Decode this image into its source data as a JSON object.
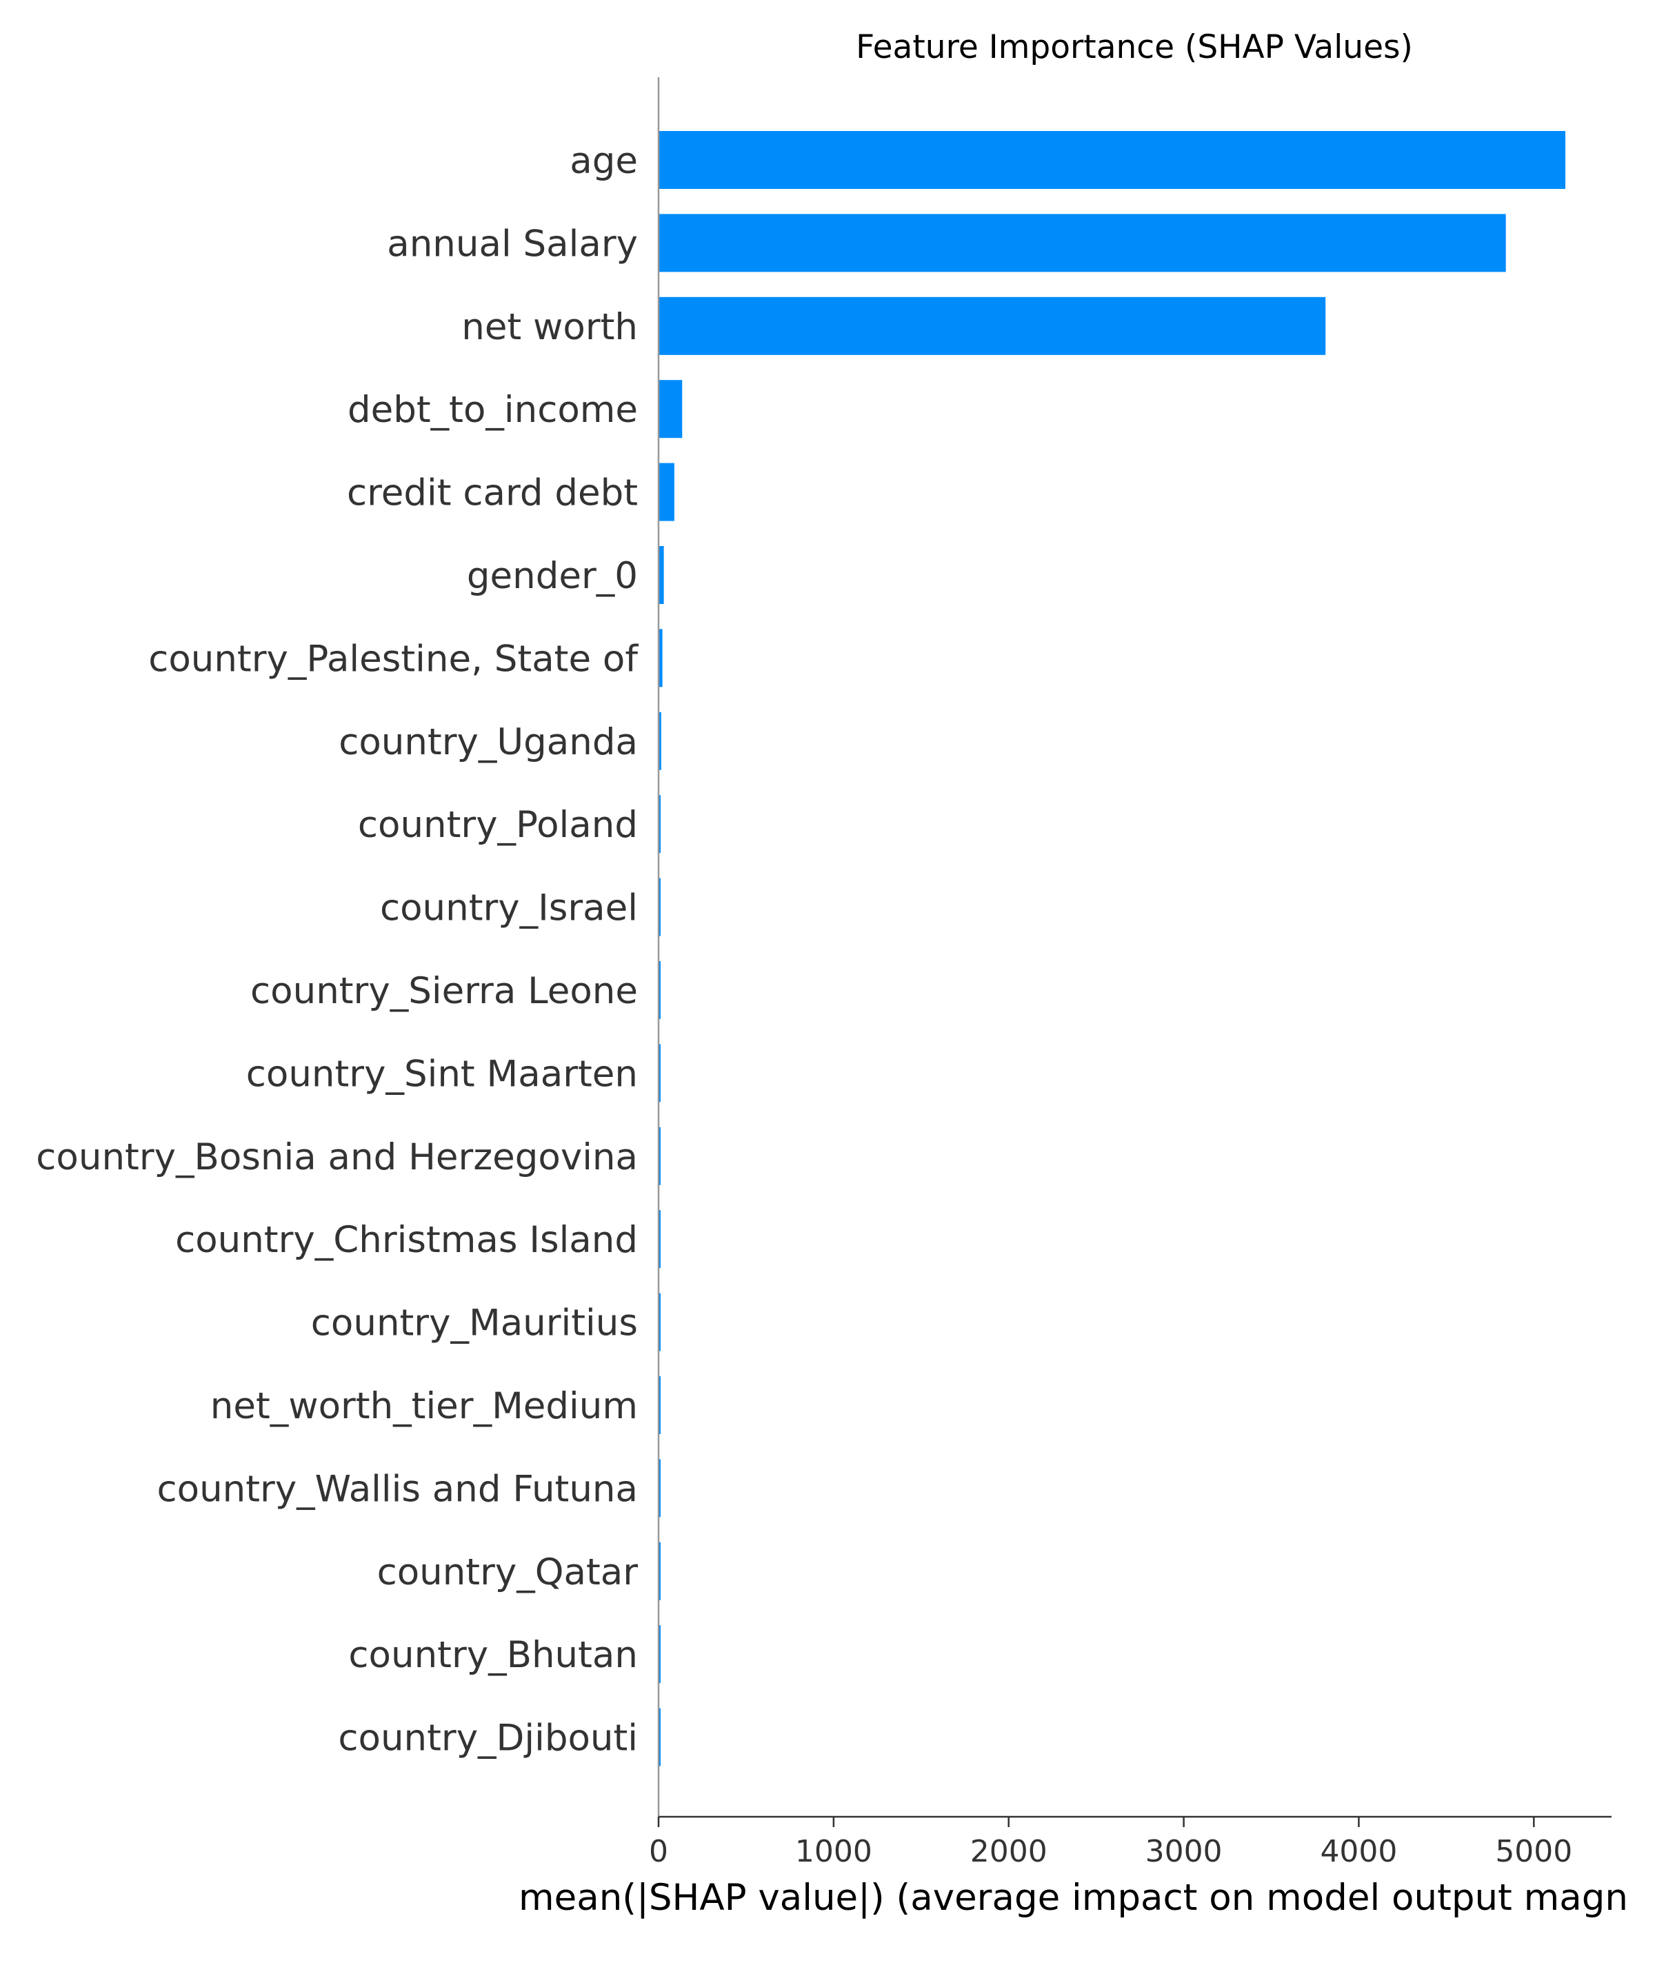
{
  "chart_data": {
    "type": "bar",
    "orientation": "horizontal",
    "title": "Feature Importance (SHAP Values)",
    "xlabel": "mean(|SHAP value|) (average impact on model output magn",
    "ylabel": "",
    "xlim": [
      0,
      5450
    ],
    "xticks": [
      "0",
      "1000",
      "2000",
      "3000",
      "4000",
      "5000"
    ],
    "xtick_values": [
      0,
      1000,
      2000,
      3000,
      4000,
      5000
    ],
    "grid": false,
    "legend": "none",
    "bar_color": "#008bfb",
    "categories": [
      "age",
      "annual Salary",
      "net worth",
      "debt_to_income",
      "credit card debt",
      "gender_0",
      "country_Palestine, State of",
      "country_Uganda",
      "country_Poland",
      "country_Israel",
      "country_Sierra Leone",
      "country_Sint Maarten",
      "country_Bosnia and Herzegovina",
      "country_Christmas Island",
      "country_Mauritius",
      "net_worth_tier_Medium",
      "country_Wallis and Futuna",
      "country_Qatar",
      "country_Bhutan",
      "country_Djibouti"
    ],
    "values": [
      5180,
      4840,
      3810,
      135,
      90,
      30,
      22,
      15,
      12,
      10,
      9,
      8,
      7,
      6,
      5,
      5,
      4,
      4,
      3,
      3
    ]
  }
}
